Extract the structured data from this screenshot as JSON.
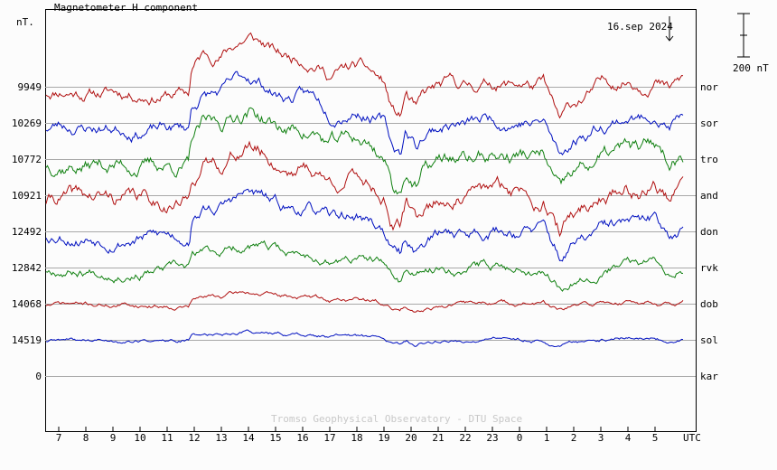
{
  "chart_data": {
    "type": "line",
    "title": "Magnetometer H component",
    "ylabel": "nT.",
    "xlabel": "UTC",
    "date_label": "16.sep 2024",
    "scale_bar_label": "200 nT",
    "credit": "Tromso Geophysical Observatory - DTU Space",
    "x_ticks": [
      "7",
      "8",
      "9",
      "10",
      "11",
      "12",
      "13",
      "14",
      "15",
      "16",
      "17",
      "18",
      "19",
      "20",
      "21",
      "22",
      "23",
      "0",
      "1",
      "2",
      "3",
      "4",
      "5"
    ],
    "x_range_hours": [
      6.5,
      30.5
    ],
    "baselines": [
      {
        "station": "nor",
        "value": "9949"
      },
      {
        "station": "sor",
        "value": "10269"
      },
      {
        "station": "tro",
        "value": "10772"
      },
      {
        "station": "and",
        "value": "10921"
      },
      {
        "station": "don",
        "value": "12492"
      },
      {
        "station": "rvk",
        "value": "12842"
      },
      {
        "station": "dob",
        "value": "14068"
      },
      {
        "station": "sol",
        "value": "14519"
      },
      {
        "station": "kar",
        "value": "0"
      }
    ],
    "grid": "horizontal",
    "series": [
      {
        "station": "nor",
        "color": "#b01010",
        "amp": 1.0,
        "noise": 4,
        "seed": 11
      },
      {
        "station": "sor",
        "color": "#0010c0",
        "amp": 0.9,
        "noise": 4,
        "seed": 23
      },
      {
        "station": "tro",
        "color": "#108010",
        "amp": 1.0,
        "noise": 5,
        "seed": 37
      },
      {
        "station": "and",
        "color": "#b01010",
        "amp": 1.0,
        "noise": 5,
        "seed": 41
      },
      {
        "station": "don",
        "color": "#0010c0",
        "amp": 0.75,
        "noise": 4,
        "seed": 53
      },
      {
        "station": "rvk",
        "color": "#108010",
        "amp": 0.45,
        "noise": 3,
        "seed": 67
      },
      {
        "station": "dob",
        "color": "#b01010",
        "amp": 0.22,
        "noise": 1.5,
        "seed": 71
      },
      {
        "station": "sol",
        "color": "#0010c0",
        "amp": 0.18,
        "noise": 1.2,
        "seed": 89
      }
    ],
    "profile_hours": [
      6.5,
      7.0,
      8.0,
      10.0,
      11.8,
      11.9,
      12.3,
      13.0,
      13.5,
      14.0,
      14.5,
      15.0,
      15.5,
      16.0,
      16.5,
      17.0,
      17.5,
      18.0,
      18.5,
      19.0,
      19.3,
      19.6,
      19.8,
      20.2,
      20.4,
      20.8,
      21.0,
      21.5,
      22.0,
      23.0,
      23.6,
      24.2,
      24.5,
      24.9,
      25.2,
      25.5,
      25.8,
      26.2,
      26.6,
      27.0,
      27.5,
      28.0,
      28.5,
      29.0,
      29.5,
      30.0,
      30.5
    ],
    "profile_deflection_nt": [
      -30,
      -10,
      -20,
      -25,
      -30,
      80,
      140,
      150,
      200,
      230,
      200,
      150,
      130,
      140,
      120,
      60,
      80,
      90,
      60,
      10,
      -120,
      -150,
      -40,
      -120,
      -70,
      -30,
      -20,
      0,
      -10,
      20,
      10,
      20,
      0,
      10,
      -90,
      -180,
      -120,
      -70,
      -40,
      0,
      20,
      40,
      20,
      60,
      -10,
      30,
      40
    ]
  }
}
